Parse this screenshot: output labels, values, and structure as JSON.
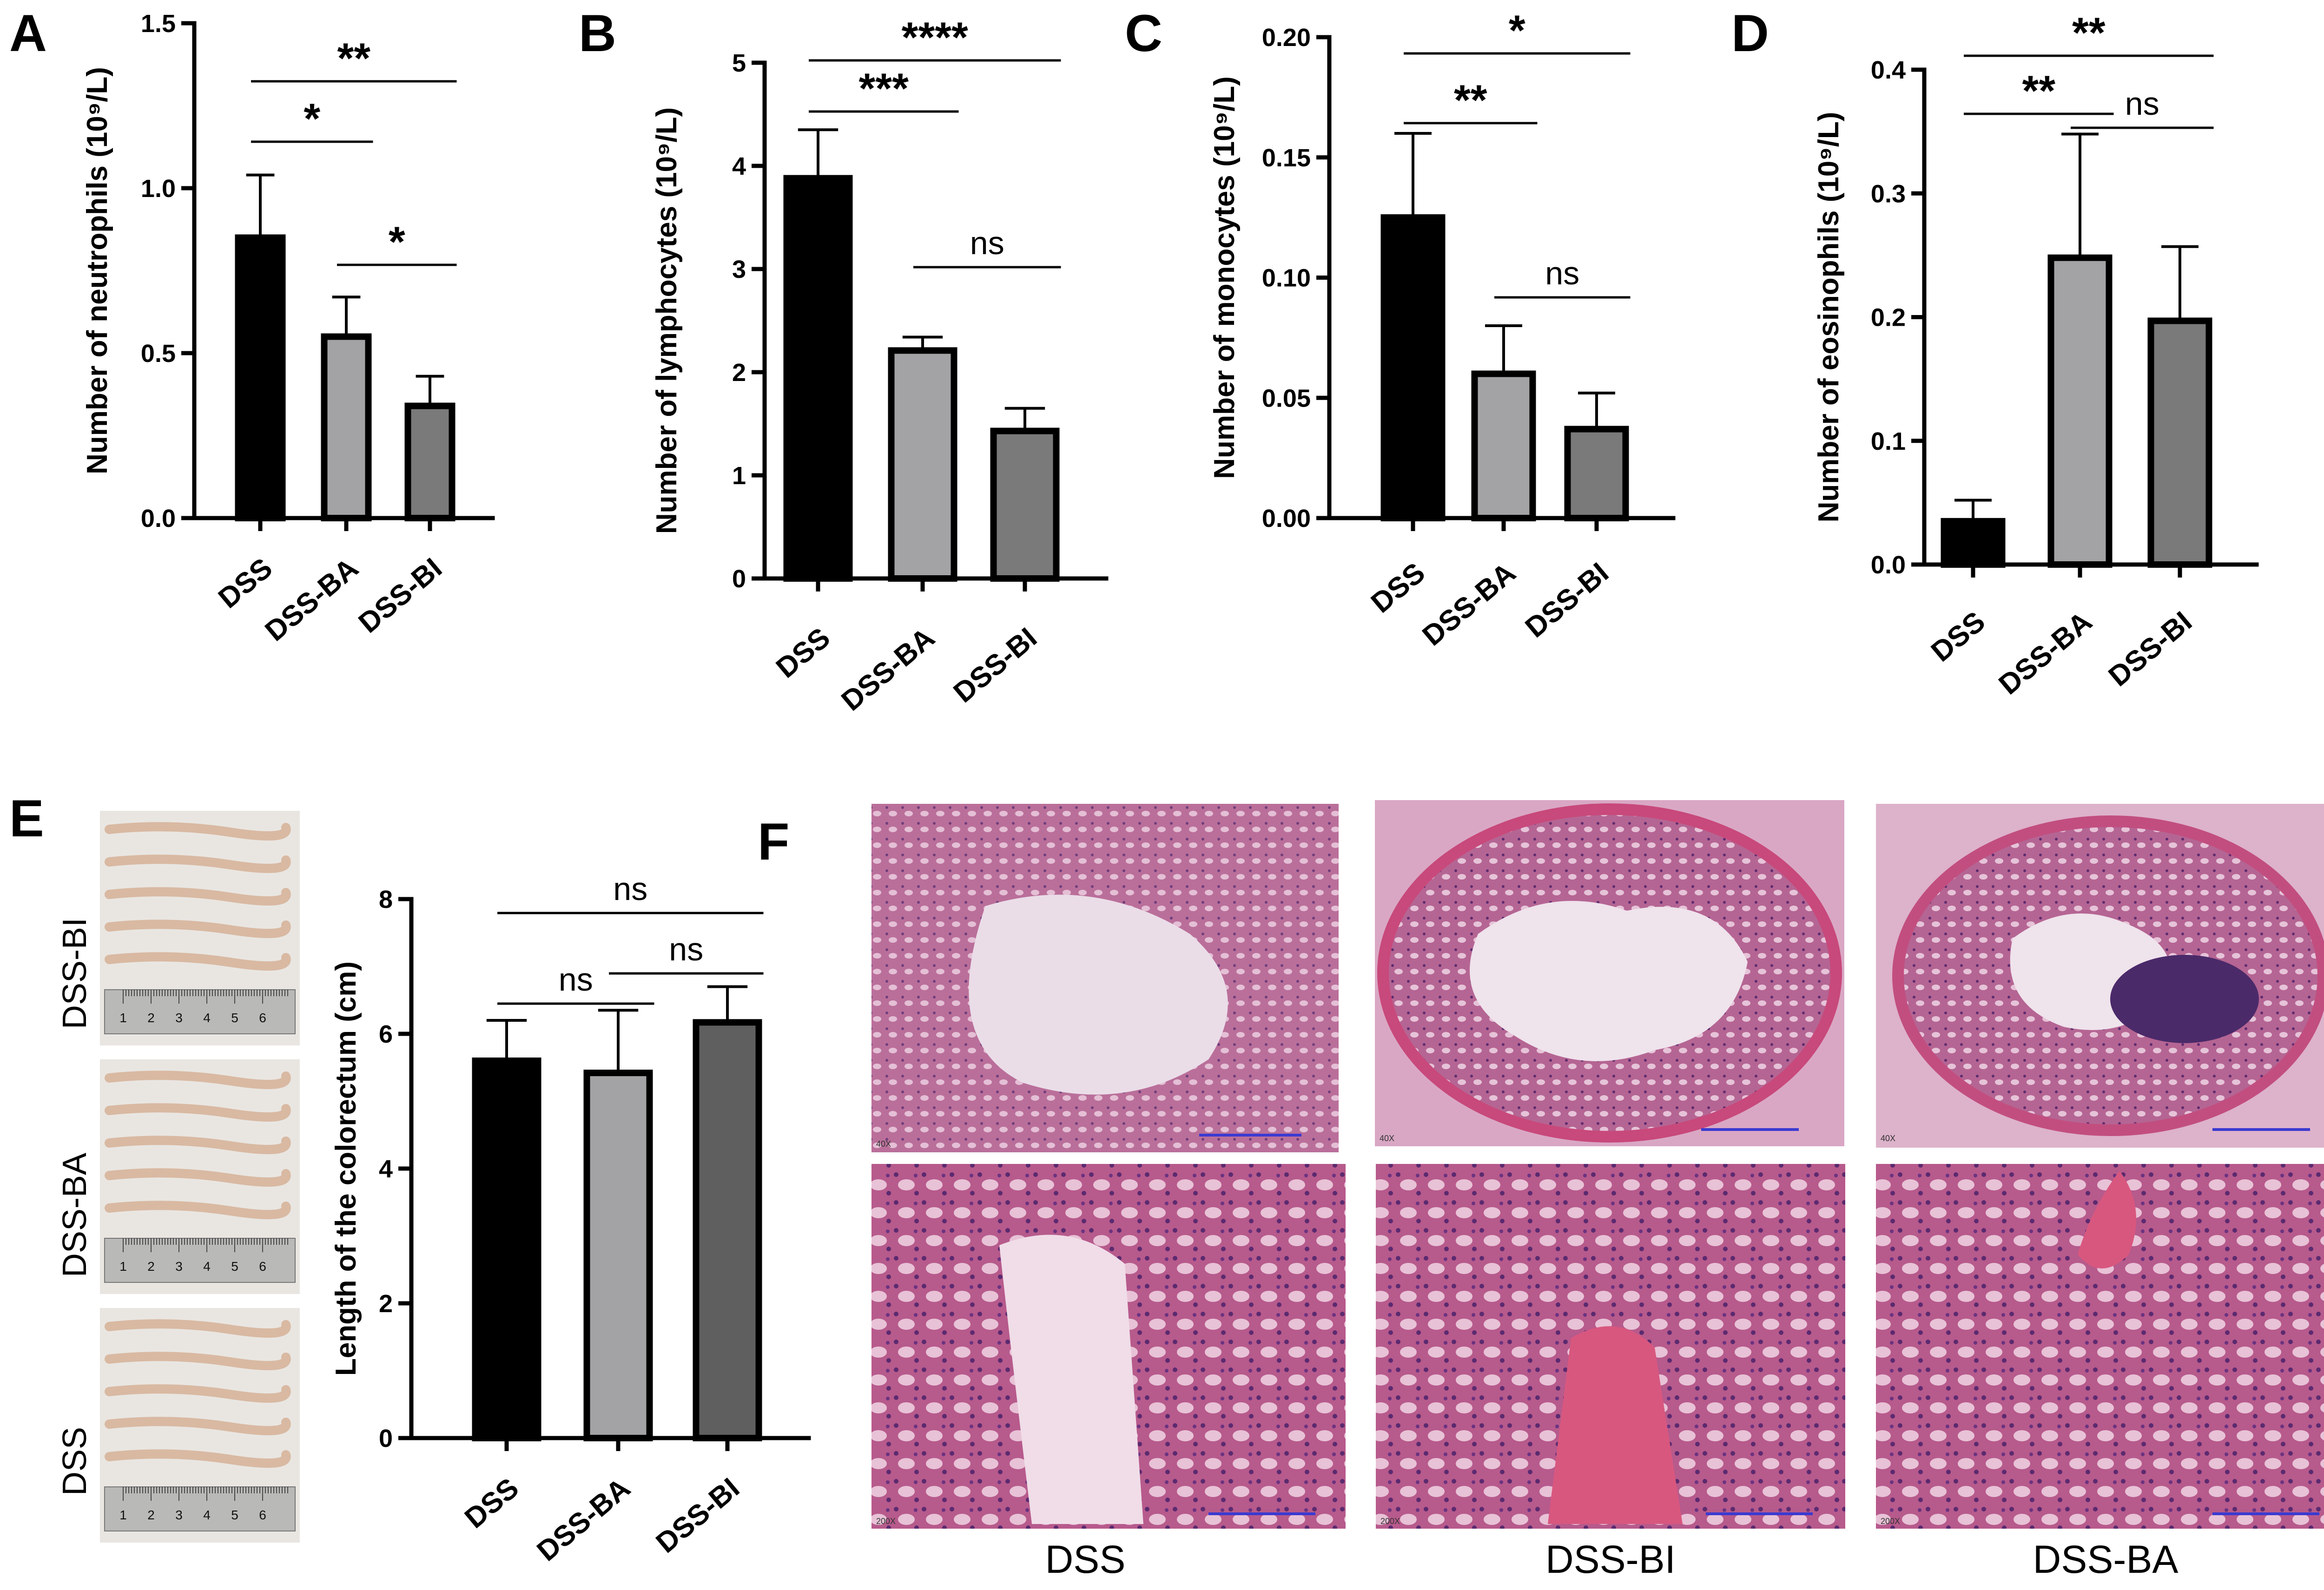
{
  "panels": {
    "A": "A",
    "B": "B",
    "C": "C",
    "D": "D",
    "E": "E",
    "F": "F"
  },
  "colors": {
    "DSS": "#000000",
    "DSS-BA": "#a3a3a6",
    "DSS-BI": "#7a7a7a",
    "DSS-BI_E": "#5f5f5f"
  },
  "chart_data": [
    {
      "id": "A",
      "type": "bar",
      "ylabel": "Number of neutrophils (10⁹/L)",
      "categories": [
        "DSS",
        "DSS-BA",
        "DSS-BI"
      ],
      "values": [
        0.85,
        0.55,
        0.34
      ],
      "errors": [
        0.19,
        0.12,
        0.09
      ],
      "ylim": [
        0,
        1.5
      ],
      "yticks": [
        "0.0",
        "0.5",
        "1.0",
        "1.5"
      ],
      "comparisons": [
        {
          "from": 0,
          "to": 1,
          "label": "*"
        },
        {
          "from": 0,
          "to": 2,
          "label": "**"
        },
        {
          "from": 1,
          "to": 2,
          "label": "*"
        }
      ]
    },
    {
      "id": "B",
      "type": "bar",
      "ylabel": "Number of lymphocytes (10⁹/L)",
      "categories": [
        "DSS",
        "DSS-BA",
        "DSS-BI"
      ],
      "values": [
        3.88,
        2.21,
        1.43
      ],
      "errors": [
        0.47,
        0.13,
        0.22
      ],
      "ylim": [
        0,
        5
      ],
      "yticks": [
        "0",
        "1",
        "2",
        "3",
        "4",
        "5"
      ],
      "comparisons": [
        {
          "from": 0,
          "to": 1,
          "label": "***"
        },
        {
          "from": 0,
          "to": 2,
          "label": "****"
        },
        {
          "from": 1,
          "to": 2,
          "label": "ns"
        }
      ]
    },
    {
      "id": "C",
      "type": "bar",
      "ylabel": "Number of monocytes (10⁹/L)",
      "categories": [
        "DSS",
        "DSS-BA",
        "DSS-BI"
      ],
      "values": [
        0.125,
        0.06,
        0.037
      ],
      "errors": [
        0.035,
        0.02,
        0.015
      ],
      "ylim": [
        0,
        0.2
      ],
      "yticks": [
        "0.00",
        "0.05",
        "0.10",
        "0.15",
        "0.20"
      ],
      "comparisons": [
        {
          "from": 0,
          "to": 1,
          "label": "**"
        },
        {
          "from": 0,
          "to": 2,
          "label": "*"
        },
        {
          "from": 1,
          "to": 2,
          "label": "ns"
        }
      ]
    },
    {
      "id": "D",
      "type": "bar",
      "ylabel": "Number of eosinophils (10⁹/L)",
      "categories": [
        "DSS",
        "DSS-BA",
        "DSS-BI"
      ],
      "values": [
        0.035,
        0.248,
        0.197
      ],
      "errors": [
        0.017,
        0.1,
        0.06
      ],
      "ylim": [
        0,
        0.4
      ],
      "yticks": [
        "0.0",
        "0.1",
        "0.2",
        "0.3",
        "0.4"
      ],
      "comparisons": [
        {
          "from": 0,
          "to": 1,
          "label": "**"
        },
        {
          "from": 0,
          "to": 2,
          "label": "**"
        },
        {
          "from": 1,
          "to": 2,
          "label": "ns"
        }
      ]
    },
    {
      "id": "E",
      "type": "bar",
      "ylabel": "Length of the colorectum (cm)",
      "categories": [
        "DSS",
        "DSS-BA",
        "DSS-BI"
      ],
      "values": [
        5.6,
        5.42,
        6.17
      ],
      "errors": [
        0.6,
        0.93,
        0.53
      ],
      "ylim": [
        0,
        8
      ],
      "yticks": [
        "0",
        "2",
        "4",
        "6",
        "8"
      ],
      "comparisons": [
        {
          "from": 0,
          "to": 1,
          "label": "ns"
        },
        {
          "from": 0,
          "to": 2,
          "label": "ns"
        },
        {
          "from": 1,
          "to": 2,
          "label": "ns"
        }
      ]
    }
  ],
  "photos_E": {
    "labels": [
      "DSS-BI",
      "DSS-BA",
      "DSS"
    ],
    "ruler": [
      "1",
      "2",
      "3",
      "4",
      "5",
      "6"
    ]
  },
  "histology_F": {
    "captions": [
      "DSS",
      "DSS-BI",
      "DSS-BA"
    ],
    "mag_top": "40X",
    "mag_bottom": "200X"
  }
}
